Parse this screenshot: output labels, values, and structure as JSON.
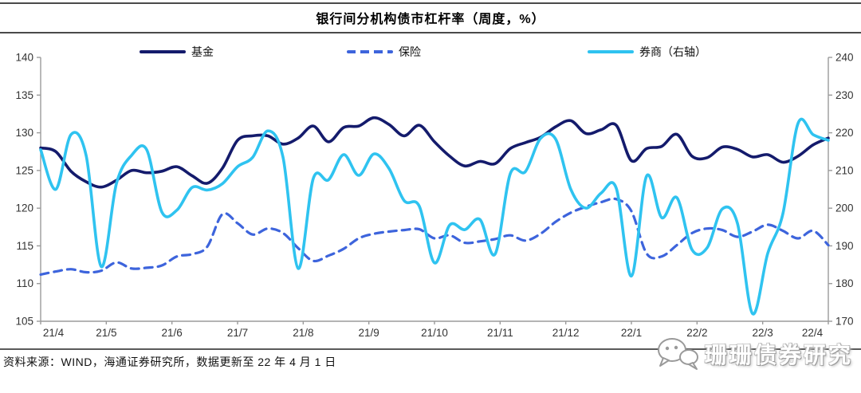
{
  "title": "银行间分机构债市杠杆率（周度，%）",
  "source_note": "资料来源：WIND，海通证券研究所，数据更新至 22 年 4 月 1 日",
  "watermark": {
    "text": "珊珊债券研究",
    "icon": "wechat-chat-bubbles-icon"
  },
  "colors": {
    "fund": "#141b6c",
    "insurance": "#3d64dc",
    "broker": "#2fc3f0",
    "axis": "#9b9b9b",
    "tick_label": "#333333"
  },
  "chart_data": {
    "type": "line",
    "title": "银行间分机构债市杠杆率（周度，%）",
    "x_tick_labels": [
      "21/4",
      "21/5",
      "21/6",
      "21/7",
      "21/8",
      "21/9",
      "21/10",
      "21/11",
      "21/12",
      "22/1",
      "22/2",
      "22/3",
      "22/4"
    ],
    "x_note": "weekly data points, 53 samples from 21/4 to 22/4",
    "left_axis": {
      "min": 105,
      "max": 140,
      "ticks": [
        140,
        135,
        130,
        125,
        120,
        115,
        110,
        105
      ]
    },
    "right_axis": {
      "min": 170,
      "max": 240,
      "ticks": [
        240,
        230,
        220,
        210,
        200,
        190,
        180,
        170
      ]
    },
    "grid": false,
    "legend_position": "top",
    "series": [
      {
        "name": "基金",
        "axis": "left",
        "style": "solid",
        "color": "#141b6c",
        "width": 3.6,
        "values": [
          128.0,
          127.5,
          124.9,
          123.5,
          122.8,
          123.7,
          125.0,
          124.7,
          124.9,
          125.5,
          124.3,
          123.3,
          125.3,
          129.0,
          129.6,
          129.6,
          128.5,
          129.3,
          130.9,
          128.8,
          130.7,
          130.9,
          132.0,
          131.1,
          129.6,
          131.0,
          128.8,
          126.9,
          125.6,
          126.2,
          125.9,
          127.9,
          128.7,
          129.4,
          130.8,
          131.6,
          129.9,
          130.4,
          131.0,
          126.3,
          127.9,
          128.2,
          129.8,
          126.9,
          126.7,
          128.1,
          127.8,
          126.8,
          127.1,
          126.1,
          126.9,
          128.4,
          129.3
        ]
      },
      {
        "name": "保险",
        "axis": "left",
        "style": "dashed",
        "color": "#3d64dc",
        "width": 3.2,
        "values": [
          111.2,
          111.6,
          111.9,
          111.5,
          111.7,
          112.8,
          112.0,
          112.1,
          112.4,
          113.6,
          113.9,
          114.9,
          119.2,
          118.0,
          116.5,
          117.3,
          116.7,
          114.7,
          113.0,
          113.7,
          114.6,
          116.0,
          116.6,
          116.9,
          117.1,
          117.2,
          116.0,
          116.4,
          115.4,
          115.6,
          115.9,
          116.4,
          115.7,
          116.6,
          118.2,
          119.4,
          120.2,
          120.8,
          121.2,
          119.6,
          114.0,
          113.6,
          115.1,
          116.7,
          117.3,
          117.1,
          116.2,
          116.9,
          117.8,
          117.0,
          116.0,
          117.0,
          115.1
        ]
      },
      {
        "name": "券商（右轴）",
        "axis": "right",
        "style": "solid",
        "color": "#2fc3f0",
        "width": 3.6,
        "values": [
          215.5,
          205.0,
          219.5,
          214.0,
          184.5,
          206.5,
          214.0,
          215.5,
          199.0,
          199.5,
          205.5,
          204.8,
          206.5,
          211.0,
          213.5,
          220.5,
          213.5,
          184.0,
          207.9,
          207.5,
          214.2,
          208.7,
          214.4,
          210.5,
          202.0,
          200.5,
          185.5,
          195.5,
          194.3,
          197.0,
          187.8,
          209.1,
          209.7,
          218.5,
          218.3,
          205.0,
          200.0,
          204.0,
          205.3,
          182.0,
          208.5,
          197.5,
          202.8,
          189.0,
          189.5,
          199.8,
          196.0,
          172.0,
          188.0,
          198.5,
          222.5,
          219.5,
          218.0
        ]
      }
    ]
  }
}
